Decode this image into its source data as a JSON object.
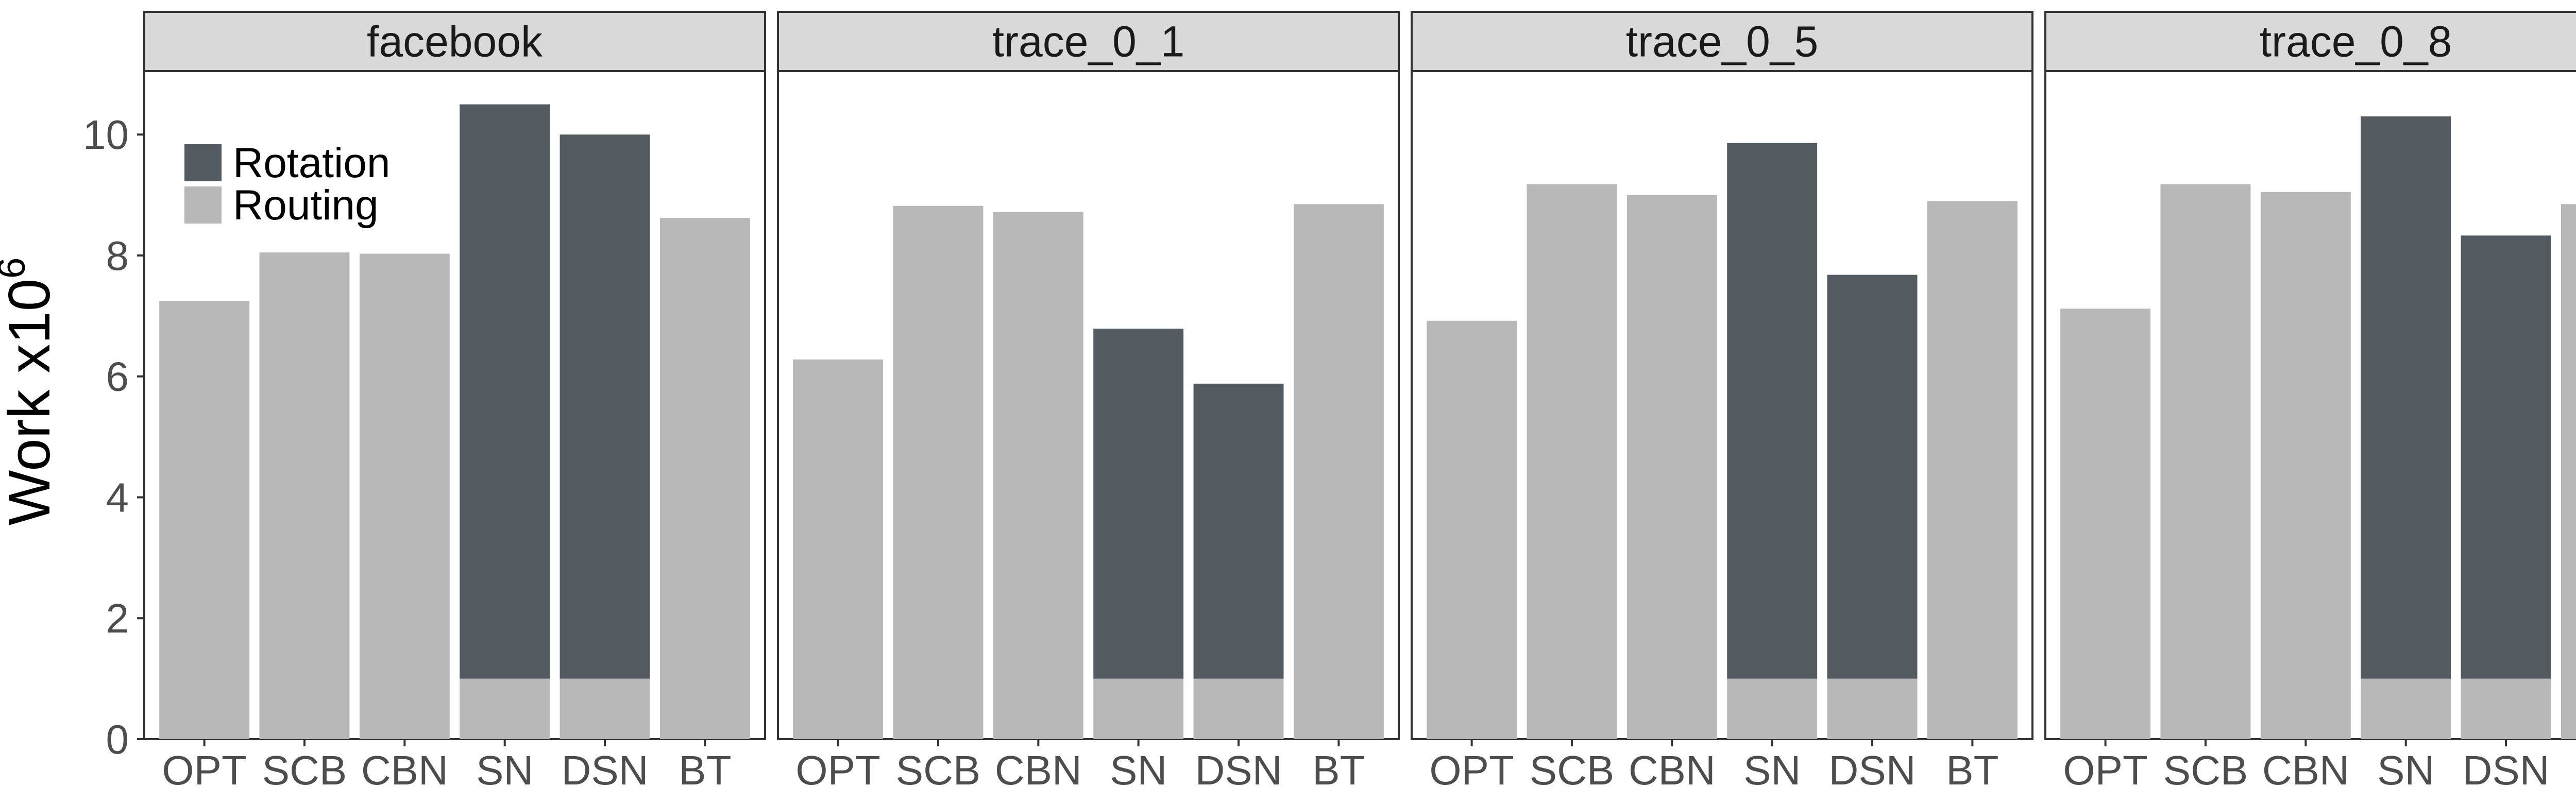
{
  "chart_data": {
    "type": "bar",
    "stacked": true,
    "ylabel": "Work x10",
    "ylabel_sup": "6",
    "ylim": [
      0,
      11.05
    ],
    "yticks": [
      0,
      2,
      4,
      6,
      8,
      10
    ],
    "categories": [
      "OPT",
      "SCB",
      "CBN",
      "SN",
      "DSN",
      "BT"
    ],
    "legend": {
      "position": "top-left",
      "entries": [
        {
          "label": "Rotation",
          "color": "#535b61"
        },
        {
          "label": "Routing",
          "color": "#b8b8b8"
        }
      ]
    },
    "facets": [
      {
        "title": "facebook",
        "series": [
          {
            "name": "Routing",
            "values": [
              7.25,
              8.05,
              8.03,
              1.0,
              1.0,
              8.62
            ]
          },
          {
            "name": "Rotation",
            "values": [
              0,
              0,
              0,
              9.5,
              9.0,
              0
            ]
          }
        ]
      },
      {
        "title": "trace_0_1",
        "series": [
          {
            "name": "Routing",
            "values": [
              6.28,
              8.82,
              8.72,
              1.0,
              1.0,
              8.85
            ]
          },
          {
            "name": "Rotation",
            "values": [
              0,
              0,
              0,
              5.79,
              4.88,
              0
            ]
          }
        ]
      },
      {
        "title": "trace_0_5",
        "series": [
          {
            "name": "Routing",
            "values": [
              6.92,
              9.18,
              9.0,
              1.0,
              1.0,
              8.9
            ]
          },
          {
            "name": "Rotation",
            "values": [
              0,
              0,
              0,
              8.86,
              6.68,
              0
            ]
          }
        ]
      },
      {
        "title": "trace_0_8",
        "series": [
          {
            "name": "Routing",
            "values": [
              7.12,
              9.18,
              9.05,
              1.0,
              1.0,
              8.85
            ]
          },
          {
            "name": "Rotation",
            "values": [
              0,
              0,
              0,
              9.3,
              7.33,
              0
            ]
          }
        ]
      }
    ]
  }
}
